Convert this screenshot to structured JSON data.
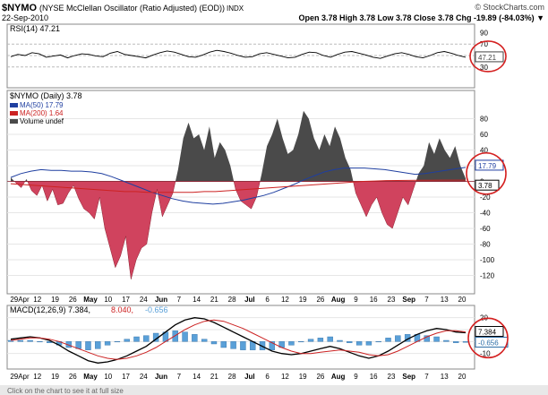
{
  "header": {
    "symbol": "$NYMO",
    "name": "(NYSE McClellan Oscillator (Ratio Adjusted) (EOD))",
    "exchange": "INDX",
    "date": "22-Sep-2010",
    "watermark": "© StockCharts.com",
    "ohlc": "Open 3.78  High 3.78  Low 3.78  Close 3.78  Chg -19.89 (-84.03%) ▼"
  },
  "footer_text": "Click on the chart to see it at full size",
  "colors": {
    "price_up": "#4a4a4a",
    "price_down": "#d0435e",
    "ma50": "#1f3fa0",
    "ma200": "#cc2222",
    "macd": "#000000",
    "signal": "#cc2222",
    "histogram": "#5aa0d8",
    "highlight": "#d42020"
  },
  "chart_data": [
    {
      "type": "line",
      "title": "RSI(14) 47.21",
      "series": [
        {
          "name": "RSI(14)",
          "values": [
            48,
            52,
            50,
            55,
            53,
            47,
            49,
            51,
            46,
            50,
            53,
            52,
            49,
            48,
            54,
            57,
            52,
            50,
            48,
            46,
            51,
            55,
            58,
            56,
            52,
            48,
            47,
            51,
            56,
            59,
            57,
            54,
            50,
            47,
            48,
            53,
            55,
            52,
            49,
            46,
            47,
            52,
            56,
            55,
            50,
            47,
            52,
            56,
            57,
            54,
            51,
            47,
            45,
            49,
            53,
            55,
            52,
            48,
            46,
            50,
            55,
            57,
            54,
            50,
            47
          ]
        }
      ],
      "ylim": [
        0,
        100
      ],
      "yticks": [
        30,
        70,
        90
      ],
      "last_value": "47.21"
    },
    {
      "type": "area",
      "title": "$NYMO (Daily) 3.78",
      "legend": [
        "MA(50) 17.79",
        "MA(200) 1.64",
        "Volume undef"
      ],
      "x_labels": [
        "29Apr",
        "12",
        "19",
        "26",
        "May",
        "10",
        "17",
        "24",
        "Jun",
        "7",
        "14",
        "21",
        "28",
        "Jul",
        "6",
        "12",
        "19",
        "26",
        "Aug",
        "9",
        "16",
        "23",
        "Sep",
        "7",
        "13",
        "20"
      ],
      "series": [
        {
          "name": "$NYMO",
          "values": [
            5,
            -2,
            -8,
            3,
            -12,
            -18,
            -5,
            -25,
            -10,
            -30,
            -28,
            -15,
            -5,
            -22,
            -35,
            -40,
            -48,
            -20,
            -60,
            -85,
            -110,
            -95,
            -70,
            -125,
            -100,
            -85,
            -80,
            -40,
            -10,
            -45,
            -30,
            -15,
            15,
            55,
            75,
            55,
            60,
            40,
            70,
            30,
            50,
            40,
            20,
            -10,
            -25,
            -30,
            -35,
            -20,
            10,
            45,
            60,
            80,
            55,
            35,
            40,
            60,
            90,
            80,
            55,
            40,
            60,
            45,
            70,
            55,
            30,
            15,
            -15,
            -30,
            -45,
            -30,
            -20,
            -40,
            -55,
            -60,
            -40,
            -20,
            -30,
            -10,
            10,
            20,
            50,
            35,
            55,
            40,
            30,
            45,
            20,
            3.78
          ]
        },
        {
          "name": "MA(50)",
          "values": [
            5,
            10,
            13,
            15,
            14,
            14,
            13,
            13,
            12,
            10,
            6,
            1,
            -4,
            -9,
            -14,
            -18,
            -22,
            -25,
            -27,
            -28,
            -29,
            -28,
            -26,
            -24,
            -21,
            -18,
            -14,
            -9,
            -4,
            2,
            7,
            12,
            15,
            17,
            17,
            17,
            16,
            15,
            13,
            11,
            9,
            10,
            12,
            14,
            16,
            17.79
          ]
        },
        {
          "name": "MA(200)",
          "values": [
            -3,
            -4,
            -5,
            -6,
            -7,
            -8,
            -9,
            -10,
            -11,
            -12,
            -13,
            -13,
            -14,
            -14,
            -14,
            -14,
            -14,
            -13,
            -13,
            -12,
            -11,
            -10,
            -9,
            -8,
            -7,
            -6,
            -5,
            -4,
            -3,
            -2,
            -1,
            0,
            0.5,
            1,
            1.2,
            1.3,
            1.4,
            1.5,
            1.55,
            1.6,
            1.64
          ]
        }
      ],
      "ylim": [
        -140,
        100
      ],
      "yticks": [
        80,
        60,
        40,
        20,
        0,
        -20,
        -40,
        -60,
        -80,
        -100,
        -120
      ],
      "last_values": [
        "17.79",
        "3.78"
      ]
    },
    {
      "type": "line",
      "title": "MACD(12,26,9) 7.384, 8.040, -0.656",
      "title_parts": {
        "macd": "MACD(12,26,9) 7.384,",
        "signal": "8.040,",
        "hist": "-0.656"
      },
      "x_labels": [
        "29Apr",
        "12",
        "19",
        "26",
        "May",
        "10",
        "17",
        "24",
        "Jun",
        "7",
        "14",
        "21",
        "28",
        "Jul",
        "6",
        "12",
        "19",
        "26",
        "Aug",
        "9",
        "16",
        "23",
        "Sep",
        "7",
        "13",
        "20"
      ],
      "series": [
        {
          "name": "MACD",
          "values": [
            2,
            3,
            4,
            3,
            1,
            -3,
            -8,
            -12,
            -16,
            -18,
            -17,
            -15,
            -12,
            -8,
            -4,
            2,
            8,
            14,
            18,
            20,
            19,
            16,
            12,
            8,
            4,
            0,
            -4,
            -8,
            -10,
            -11,
            -10,
            -8,
            -6,
            -4,
            -6,
            -9,
            -12,
            -14,
            -12,
            -8,
            -3,
            2,
            6,
            9,
            11,
            10,
            8,
            7.384
          ]
        },
        {
          "name": "Signal",
          "values": [
            1,
            2,
            3,
            3,
            2,
            0,
            -3,
            -6,
            -9,
            -12,
            -14,
            -15,
            -14,
            -12,
            -9,
            -5,
            0,
            5,
            10,
            14,
            17,
            18,
            17,
            14,
            11,
            7,
            3,
            -1,
            -5,
            -8,
            -10,
            -10,
            -9,
            -8,
            -7,
            -8,
            -9,
            -11,
            -12,
            -11,
            -8,
            -4,
            0,
            4,
            7,
            9,
            9,
            8.04
          ]
        }
      ],
      "ylim": [
        -20,
        25
      ],
      "yticks": [
        20,
        10,
        0,
        -10
      ],
      "last_values": [
        "7.384",
        "-0.656"
      ]
    }
  ]
}
